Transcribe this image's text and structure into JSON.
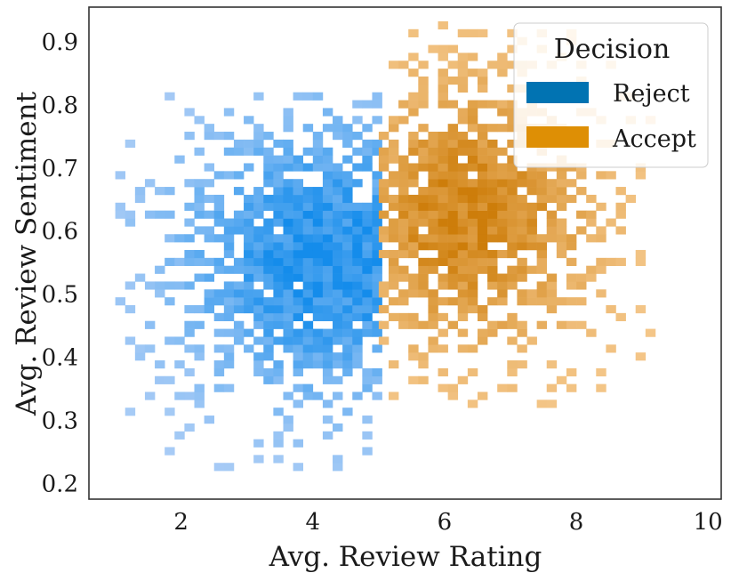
{
  "chart_data": {
    "type": "heatmap",
    "subtype": "2d-histogram",
    "title": "",
    "xlabel": "Avg. Review Rating",
    "ylabel": "Avg. Review Sentiment",
    "xlim": [
      0.6,
      10.2
    ],
    "ylim": [
      0.175,
      0.955
    ],
    "xticks": [
      2,
      4,
      6,
      8,
      10
    ],
    "yticks": [
      0.2,
      0.3,
      0.4,
      0.5,
      0.6,
      0.7,
      0.8,
      0.9
    ],
    "xtick_labels": [
      "2",
      "4",
      "6",
      "8",
      "10"
    ],
    "ytick_labels": [
      "0.2",
      "0.3",
      "0.4",
      "0.5",
      "0.6",
      "0.7",
      "0.8",
      "0.9"
    ],
    "grid": false,
    "bin_width_x": 0.15,
    "bin_width_y": 0.0125,
    "legend": {
      "title": "Decision",
      "position": "top-right",
      "entries": [
        {
          "label": "Reject",
          "color": "#0173b2"
        },
        {
          "label": "Accept",
          "color": "#de8f05"
        }
      ]
    },
    "series": [
      {
        "name": "Reject",
        "color": "#0173b2",
        "x_range": [
          1.0,
          5.0
        ],
        "y_range": [
          0.22,
          0.82
        ],
        "peak": {
          "x": 4.2,
          "y": 0.55
        },
        "density_note": "denser around rating 3-5, sentiment 0.45-0.65"
      },
      {
        "name": "Accept",
        "color": "#de8f05",
        "x_range": [
          5.0,
          9.2
        ],
        "y_range": [
          0.32,
          0.93
        ],
        "peak": {
          "x": 6.3,
          "y": 0.62
        },
        "density_note": "denser around rating 6-7, sentiment 0.55-0.70"
      }
    ]
  }
}
